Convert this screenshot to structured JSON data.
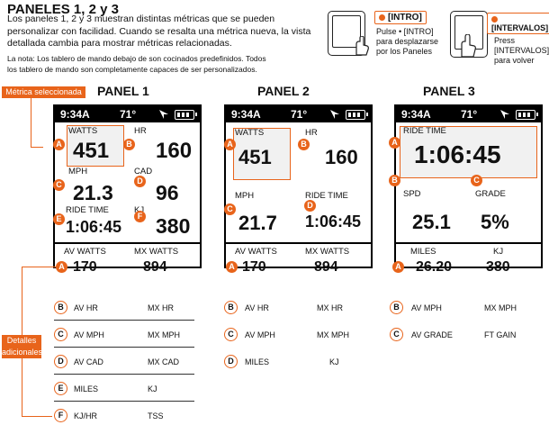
{
  "header": {
    "title": "PANELES 1, 2 y 3",
    "intro": "Los paneles 1, 2 y 3 muestran distintas métricas que se pueden personalizar con facilidad. Cuando se resalta una métrica nueva, la vista detallada cambia para mostrar métricas relacionadas.",
    "note": "La nota: Los tablero de mando debajo de son cocinados predefinidos. Todos los tablero de mando son completamente capaces de ser personalizados."
  },
  "intro_button": {
    "label": "[INTRO]",
    "caption": "Pulse • [INTRO] para desplazarse por los Paneles"
  },
  "intervals_button": {
    "label": "[INTERVALOS]",
    "caption": "Press [INTERVALOS] para volver"
  },
  "callouts": {
    "selected_metric": "Métrica seleccionada",
    "additional_details": "Detalles adicionales"
  },
  "status": {
    "time": "9:34A",
    "temp": "71°"
  },
  "panel1": {
    "title": "PANEL 1",
    "metrics": [
      {
        "label": "WATTS",
        "value": "451"
      },
      {
        "label": "HR",
        "value": "160"
      },
      {
        "label": "MPH",
        "value": "21.3"
      },
      {
        "label": "CAD",
        "value": "96"
      },
      {
        "label": "RIDE TIME",
        "value": "1:06:45"
      },
      {
        "label": "KJ",
        "value": "380"
      }
    ],
    "bottom": [
      {
        "label": "AV WATTS",
        "value": "170"
      },
      {
        "label": "MX WATTS",
        "value": "894"
      }
    ],
    "details": [
      {
        "marker": "B",
        "left": "AV HR",
        "right": "MX HR"
      },
      {
        "marker": "C",
        "left": "AV MPH",
        "right": "MX MPH"
      },
      {
        "marker": "D",
        "left": "AV CAD",
        "right": "MX CAD"
      },
      {
        "marker": "E",
        "left": "MILES",
        "right": "KJ"
      },
      {
        "marker": "F",
        "left": "KJ/HR",
        "right": "TSS"
      }
    ]
  },
  "panel2": {
    "title": "PANEL 2",
    "metrics": [
      {
        "label": "WATTS",
        "value": "451"
      },
      {
        "label": "HR",
        "value": "160"
      },
      {
        "label": "MPH",
        "value": "21.7"
      },
      {
        "label": "RIDE TIME",
        "value": "1:06:45"
      }
    ],
    "bottom": [
      {
        "label": "AV WATTS",
        "value": "170"
      },
      {
        "label": "MX WATTS",
        "value": "894"
      }
    ],
    "details": [
      {
        "marker": "B",
        "left": "AV HR",
        "right": "MX HR"
      },
      {
        "marker": "C",
        "left": "AV MPH",
        "right": "MX MPH"
      },
      {
        "marker": "D",
        "left": "MILES",
        "right": "KJ"
      }
    ]
  },
  "panel3": {
    "title": "PANEL 3",
    "metrics": [
      {
        "label": "RIDE TIME",
        "value": "1:06:45"
      },
      {
        "label": "SPD",
        "value": "25.1"
      },
      {
        "label": "GRADE",
        "value": "5%"
      }
    ],
    "bottom": [
      {
        "label": "MILES",
        "value": "26.20"
      },
      {
        "label": "KJ",
        "value": "380"
      }
    ],
    "details": [
      {
        "marker": "B",
        "left": "AV MPH",
        "right": "MX MPH"
      },
      {
        "marker": "C",
        "left": "AV GRADE",
        "right": "FT GAIN"
      }
    ]
  },
  "markers": {
    "A": "A",
    "B": "B",
    "C": "C",
    "D": "D",
    "E": "E",
    "F": "F"
  },
  "colors": {
    "accent": "#e8641b",
    "highlight_fill": "#f1f1f1"
  },
  "icons": [
    "arrow-icon",
    "battery-icon",
    "hand-press-icon"
  ]
}
